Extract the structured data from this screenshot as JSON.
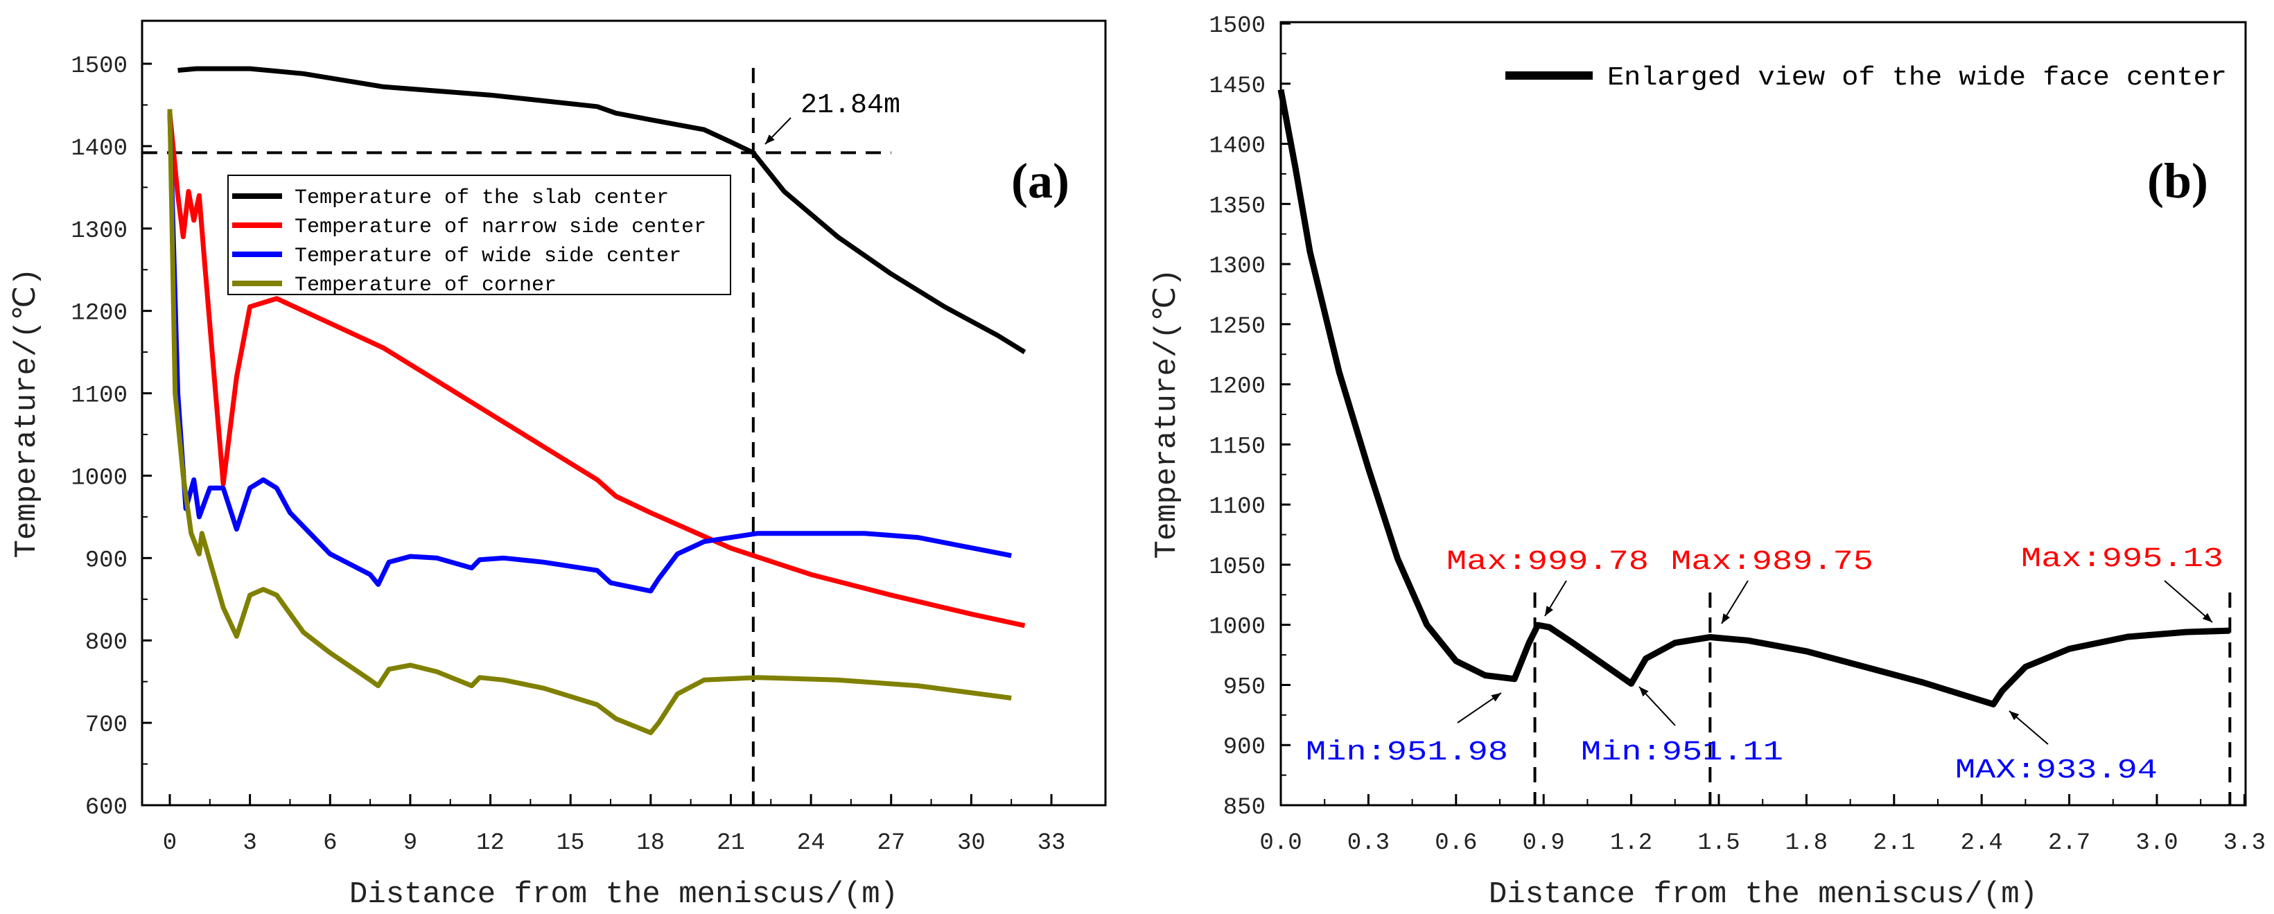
{
  "chart_data": [
    {
      "type": "line",
      "panel_label": "(a)",
      "xlabel": "Distance from the meniscus/(m)",
      "ylabel": "Temperature/(℃)",
      "xlim": [
        -0.4,
        33.65
      ],
      "ylim": [
        600,
        1521
      ],
      "xticks": [
        0,
        3,
        6,
        9,
        12,
        15,
        18,
        21,
        24,
        27,
        30,
        33
      ],
      "yticks": [
        600,
        700,
        800,
        900,
        1000,
        1100,
        1200,
        1300,
        1400,
        1500
      ],
      "legend_position": "upper-left-center",
      "series": [
        {
          "name": "Temperature of the slab center",
          "color": "#000000",
          "points": [
            [
              0.3,
              1492
            ],
            [
              1,
              1494
            ],
            [
              3,
              1494
            ],
            [
              5,
              1488
            ],
            [
              8,
              1472
            ],
            [
              12,
              1462
            ],
            [
              16,
              1448
            ],
            [
              16.7,
              1440
            ],
            [
              18,
              1432
            ],
            [
              20,
              1420
            ],
            [
              21,
              1405
            ],
            [
              21.84,
              1392
            ],
            [
              23,
              1345
            ],
            [
              25,
              1290
            ],
            [
              27,
              1245
            ],
            [
              29,
              1205
            ],
            [
              31,
              1170
            ],
            [
              32,
              1150
            ]
          ]
        },
        {
          "name": "Temperature of narrow side center",
          "color": "#ff0000",
          "points": [
            [
              0,
              1440
            ],
            [
              0.3,
              1340
            ],
            [
              0.5,
              1290
            ],
            [
              0.7,
              1345
            ],
            [
              0.9,
              1310
            ],
            [
              1.1,
              1340
            ],
            [
              1.3,
              1260
            ],
            [
              2,
              990
            ],
            [
              2.5,
              1120
            ],
            [
              3,
              1205
            ],
            [
              4,
              1215
            ],
            [
              6,
              1185
            ],
            [
              8,
              1155
            ],
            [
              10,
              1115
            ],
            [
              12,
              1075
            ],
            [
              14,
              1035
            ],
            [
              16,
              995
            ],
            [
              16.7,
              975
            ],
            [
              18,
              955
            ],
            [
              21,
              912
            ],
            [
              24,
              880
            ],
            [
              27,
              855
            ],
            [
              30,
              832
            ],
            [
              32,
              818
            ]
          ]
        },
        {
          "name": "Temperature of wide side center",
          "color": "#0000ff",
          "points": [
            [
              0,
              1440
            ],
            [
              0.3,
              1100
            ],
            [
              0.6,
              960
            ],
            [
              0.9,
              995
            ],
            [
              1.1,
              950
            ],
            [
              1.5,
              985
            ],
            [
              2,
              985
            ],
            [
              2.5,
              935
            ],
            [
              3,
              985
            ],
            [
              3.5,
              995
            ],
            [
              4,
              985
            ],
            [
              4.5,
              955
            ],
            [
              6,
              905
            ],
            [
              7.5,
              880
            ],
            [
              7.8,
              868
            ],
            [
              8.2,
              895
            ],
            [
              9,
              902
            ],
            [
              10,
              900
            ],
            [
              11.3,
              888
            ],
            [
              11.6,
              898
            ],
            [
              12.5,
              900
            ],
            [
              14,
              895
            ],
            [
              16,
              885
            ],
            [
              16.5,
              870
            ],
            [
              18,
              860
            ],
            [
              18.3,
              875
            ],
            [
              19,
              905
            ],
            [
              20,
              920
            ],
            [
              22,
              930
            ],
            [
              26,
              930
            ],
            [
              28,
              925
            ],
            [
              31.5,
              903
            ]
          ]
        },
        {
          "name": "Temperature of corner",
          "color": "#808000",
          "points": [
            [
              0,
              1445
            ],
            [
              0.2,
              1100
            ],
            [
              0.5,
              1000
            ],
            [
              0.8,
              930
            ],
            [
              1.1,
              905
            ],
            [
              1.2,
              930
            ],
            [
              2,
              840
            ],
            [
              2.5,
              805
            ],
            [
              3,
              855
            ],
            [
              3.5,
              862
            ],
            [
              4,
              855
            ],
            [
              5,
              810
            ],
            [
              6,
              785
            ],
            [
              7.5,
              752
            ],
            [
              7.8,
              745
            ],
            [
              8.2,
              765
            ],
            [
              9,
              770
            ],
            [
              10,
              762
            ],
            [
              11.3,
              745
            ],
            [
              11.6,
              755
            ],
            [
              12.5,
              752
            ],
            [
              14,
              742
            ],
            [
              16,
              722
            ],
            [
              16.7,
              705
            ],
            [
              18,
              688
            ],
            [
              18.3,
              700
            ],
            [
              19,
              735
            ],
            [
              20,
              752
            ],
            [
              22,
              755
            ],
            [
              25,
              752
            ],
            [
              28,
              745
            ],
            [
              31.5,
              730
            ]
          ]
        }
      ],
      "reference_lines": {
        "horizontal_y": 1392,
        "horizontal_x_range": [
          0,
          27
        ],
        "vertical_x": 21.84
      },
      "annotations": [
        {
          "text": "21.84m",
          "x": 21.84,
          "y": 1392
        }
      ]
    },
    {
      "type": "line",
      "panel_label": "(b)",
      "xlabel": "Distance from the meniscus/(m)",
      "ylabel": "Temperature/(℃)",
      "xlim": [
        0,
        3.33
      ],
      "ylim": [
        850,
        1500
      ],
      "xticks": [
        "0.0",
        "0.3",
        "0.6",
        "0.9",
        "1.2",
        "1.5",
        "1.8",
        "2.1",
        "2.4",
        "2.7",
        "3.0",
        "3.3"
      ],
      "yticks": [
        850,
        900,
        950,
        1000,
        1050,
        1100,
        1150,
        1200,
        1250,
        1300,
        1350,
        1400,
        1450,
        1500
      ],
      "legend_position": "top-right",
      "series": [
        {
          "name": "Enlarged view of the wide face center",
          "color": "#000000",
          "points": [
            [
              0,
              1445
            ],
            [
              0.05,
              1380
            ],
            [
              0.1,
              1310
            ],
            [
              0.2,
              1210
            ],
            [
              0.3,
              1130
            ],
            [
              0.4,
              1055
            ],
            [
              0.5,
              1000
            ],
            [
              0.6,
              970
            ],
            [
              0.7,
              958
            ],
            [
              0.8,
              955
            ],
            [
              0.85,
              985
            ],
            [
              0.88,
              999.78
            ],
            [
              0.92,
              998
            ],
            [
              1.0,
              985
            ],
            [
              1.1,
              968
            ],
            [
              1.2,
              951.11
            ],
            [
              1.25,
              972
            ],
            [
              1.35,
              985
            ],
            [
              1.47,
              989.75
            ],
            [
              1.6,
              987
            ],
            [
              1.8,
              978
            ],
            [
              2.0,
              965
            ],
            [
              2.2,
              952
            ],
            [
              2.44,
              933.94
            ],
            [
              2.47,
              945
            ],
            [
              2.55,
              965
            ],
            [
              2.7,
              980
            ],
            [
              2.9,
              990
            ],
            [
              3.1,
              994
            ],
            [
              3.25,
              995.13
            ]
          ]
        }
      ],
      "vertical_lines_x": [
        0.87,
        1.47,
        3.25
      ],
      "annotations": [
        {
          "text": "Max:999.78",
          "color": "#ff0000",
          "x": 0.88,
          "y": 999.78,
          "place": "above"
        },
        {
          "text": "Max:989.75",
          "color": "#ff0000",
          "x": 1.47,
          "y": 989.75,
          "place": "above"
        },
        {
          "text": "Max:995.13",
          "color": "#ff0000",
          "x": 3.25,
          "y": 995.13,
          "place": "above"
        },
        {
          "text": "Min:951.98",
          "color": "#0000ff",
          "x": 0.8,
          "y": 951.98,
          "place": "below"
        },
        {
          "text": "Min:951.11",
          "color": "#0000ff",
          "x": 1.2,
          "y": 951.11,
          "place": "below"
        },
        {
          "text": "MAX:933.94",
          "color": "#0000ff",
          "x": 2.44,
          "y": 933.94,
          "place": "below"
        }
      ]
    }
  ]
}
